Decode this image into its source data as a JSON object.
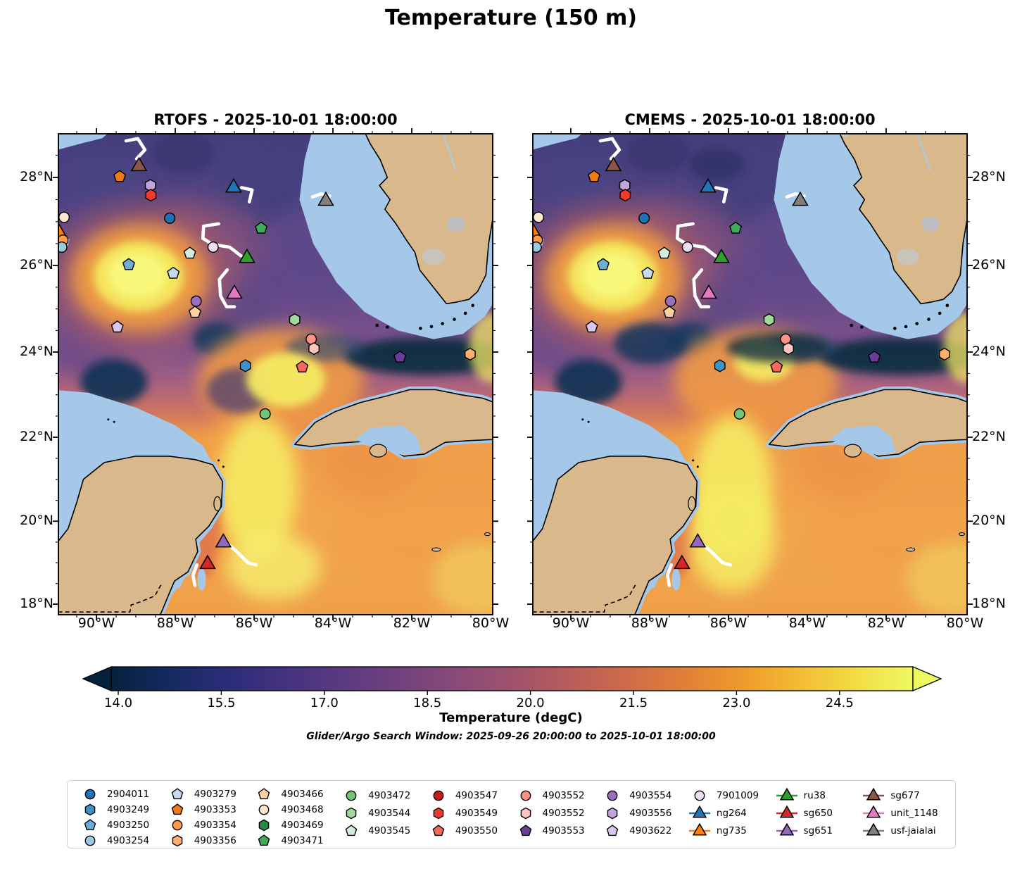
{
  "title": "Temperature (150 m)",
  "subtitle": "Glider/Argo Search Window: 2025-09-26 20:00:00 to 2025-10-01 18:00:00",
  "chart_data": {
    "type": "map-contour",
    "panels": [
      {
        "id": "rtofs",
        "title": "RTOFS - 2025-10-01 18:00:00"
      },
      {
        "id": "cmems",
        "title": "CMEMS - 2025-10-01 18:00:00"
      }
    ],
    "axes": {
      "lon_range": [
        -90.96,
        -79.95
      ],
      "lat_range": [
        17.74,
        28.98
      ],
      "x_ticks": [
        {
          "lon": -90,
          "label": "90°W"
        },
        {
          "lon": -88,
          "label": "88°W"
        },
        {
          "lon": -86,
          "label": "86°W"
        },
        {
          "lon": -84,
          "label": "84°W"
        },
        {
          "lon": -82,
          "label": "82°W"
        },
        {
          "lon": -80,
          "label": "80°W"
        }
      ],
      "y_ticks": [
        {
          "lat": 28,
          "label": "28°N"
        },
        {
          "lat": 26,
          "label": "26°N"
        },
        {
          "lat": 24,
          "label": "24°N"
        },
        {
          "lat": 22,
          "label": "22°N"
        },
        {
          "lat": 20,
          "label": "20°N"
        },
        {
          "lat": 18,
          "label": "18°N"
        }
      ],
      "minor_tick_step": 0.5
    },
    "colorbar": {
      "label": "Temperature (degC)",
      "colormap": "thermal",
      "vmin": 13.9,
      "vmax": 25.55,
      "extend": "both",
      "ticks": [
        {
          "value": 14.0,
          "label": "14.0"
        },
        {
          "value": 15.5,
          "label": "15.5"
        },
        {
          "value": 17.0,
          "label": "17.0"
        },
        {
          "value": 18.5,
          "label": "18.5"
        },
        {
          "value": 20.0,
          "label": "20.0"
        },
        {
          "value": 21.5,
          "label": "21.5"
        },
        {
          "value": 23.0,
          "label": "23.0"
        },
        {
          "value": 24.5,
          "label": "24.5"
        }
      ],
      "gradient_stops": [
        "#05223c",
        "#152a5f",
        "#2b2d78",
        "#44327f",
        "#5a3a80",
        "#70417e",
        "#884a77",
        "#9f526c",
        "#b75d5c",
        "#cf6b4a",
        "#e07f37",
        "#ee9a2c",
        "#f3bb32",
        "#f2dc45",
        "#eef962"
      ]
    },
    "markers": [
      {
        "label": "4903468",
        "shape": "circle",
        "color": "#fde7cd",
        "lon": -90.82,
        "lat": 27.1
      },
      {
        "label": "ng735",
        "shape": "triangle",
        "color": "#ff7f0e",
        "lon": -90.95,
        "lat": 26.78
      },
      {
        "label": "4903354",
        "shape": "circle",
        "color": "#fd9a49",
        "lon": -90.85,
        "lat": 26.58
      },
      {
        "label": "4903254",
        "shape": "circle",
        "color": "#9ecae1",
        "lon": -90.88,
        "lat": 26.42
      },
      {
        "label": "sg677",
        "shape": "triangle",
        "color": "#8c564b",
        "lon": -88.92,
        "lat": 28.28
      },
      {
        "label": "4903353",
        "shape": "pentagon",
        "color": "#f07b16",
        "lon": -89.41,
        "lat": 28.02
      },
      {
        "label": "4903556",
        "shape": "hexagon",
        "color": "#c3a2dd",
        "lon": -88.63,
        "lat": 27.82
      },
      {
        "label": "4903549",
        "shape": "hexagon",
        "color": "#ef3b2c",
        "lon": -88.62,
        "lat": 27.6
      },
      {
        "label": "ng264",
        "shape": "triangle",
        "color": "#1f77b4",
        "lon": -86.52,
        "lat": 27.8
      },
      {
        "label": "usf-jaialai",
        "shape": "triangle",
        "color": "#7f7f7f",
        "lon": -84.18,
        "lat": 27.5
      },
      {
        "label": "2904011",
        "shape": "circle",
        "color": "#2171b5",
        "lon": -88.14,
        "lat": 27.08
      },
      {
        "label": "4903471",
        "shape": "pentagon",
        "color": "#41ab5d",
        "lon": -85.82,
        "lat": 26.85
      },
      {
        "label": "7901009",
        "shape": "circle",
        "color": "#ecdff5",
        "lon": -87.04,
        "lat": 26.42
      },
      {
        "label": "4903545",
        "shape": "pentagon",
        "color": "#d2edda",
        "lon": -87.63,
        "lat": 26.28
      },
      {
        "label": "ru38",
        "shape": "triangle",
        "color": "#2ca02c",
        "lon": -86.18,
        "lat": 26.2
      },
      {
        "label": "4903250",
        "shape": "pentagon",
        "color": "#6baed6",
        "lon": -89.18,
        "lat": 26.02
      },
      {
        "label": "4903279",
        "shape": "pentagon",
        "color": "#c6dbef",
        "lon": -88.05,
        "lat": 25.82
      },
      {
        "label": "unit_1148",
        "shape": "triangle",
        "color": "#e377c2",
        "lon": -86.5,
        "lat": 25.38
      },
      {
        "label": "4903554",
        "shape": "circle",
        "color": "#9a6fc0",
        "lon": -87.47,
        "lat": 25.18
      },
      {
        "label": "4903466",
        "shape": "pentagon",
        "color": "#fdd0a2",
        "lon": -87.5,
        "lat": 24.92
      },
      {
        "label": "4903622",
        "shape": "pentagon",
        "color": "#dcc5ec",
        "lon": -89.47,
        "lat": 24.58
      },
      {
        "label": "4903544",
        "shape": "hexagon",
        "color": "#a1d99b",
        "lon": -84.97,
        "lat": 24.75
      },
      {
        "label": "4903552",
        "shape": "circle",
        "color": "#fc9285",
        "lon": -84.55,
        "lat": 24.3
      },
      {
        "label": "4903552",
        "shape": "hexagon",
        "color": "#fcc5c0",
        "lon": -84.48,
        "lat": 24.08
      },
      {
        "label": "4903550",
        "shape": "pentagon",
        "color": "#f4695c",
        "lon": -84.78,
        "lat": 23.65
      },
      {
        "label": "4903553",
        "shape": "pentagon",
        "color": "#6a3d9a",
        "lon": -82.3,
        "lat": 23.88
      },
      {
        "label": "4903356",
        "shape": "hexagon",
        "color": "#fdae6b",
        "lon": -80.52,
        "lat": 23.95
      },
      {
        "label": "4903249",
        "shape": "hexagon",
        "color": "#4292c6",
        "lon": -86.22,
        "lat": 23.68
      },
      {
        "label": "4903472",
        "shape": "circle",
        "color": "#74c476",
        "lon": -85.72,
        "lat": 22.55
      },
      {
        "label": "sg651",
        "shape": "triangle",
        "color": "#9467bd",
        "lon": -86.78,
        "lat": 19.52
      },
      {
        "label": "sg650",
        "shape": "triangle",
        "color": "#d62728",
        "lon": -87.18,
        "lat": 19.0
      }
    ],
    "glider_tracks": [
      {
        "points": [
          [
            -89.25,
            28.82
          ],
          [
            -88.95,
            28.87
          ],
          [
            -88.77,
            28.62
          ],
          [
            -88.98,
            28.42
          ]
        ]
      },
      {
        "points": [
          [
            -86.32,
            27.77
          ],
          [
            -86.05,
            27.72
          ],
          [
            -86.12,
            27.45
          ]
        ]
      },
      {
        "points": [
          [
            -84.52,
            27.56
          ],
          [
            -84.3,
            27.63
          ],
          [
            -84.08,
            27.58
          ]
        ]
      },
      {
        "points": [
          [
            -86.9,
            26.95
          ],
          [
            -87.28,
            26.9
          ],
          [
            -87.3,
            26.62
          ],
          [
            -87.05,
            26.48
          ],
          [
            -86.62,
            26.42
          ],
          [
            -86.33,
            26.22
          ]
        ]
      },
      {
        "points": [
          [
            -86.68,
            25.9
          ],
          [
            -86.88,
            25.68
          ],
          [
            -86.85,
            25.3
          ],
          [
            -86.7,
            25.05
          ],
          [
            -86.5,
            25.05
          ]
        ]
      },
      {
        "points": [
          [
            -86.7,
            19.48
          ],
          [
            -86.45,
            19.28
          ],
          [
            -86.15,
            19.0
          ],
          [
            -85.95,
            18.95
          ]
        ]
      },
      {
        "points": [
          [
            -87.45,
            18.95
          ],
          [
            -87.55,
            18.7
          ],
          [
            -87.5,
            18.45
          ]
        ]
      }
    ]
  },
  "legend": {
    "columns": [
      [
        {
          "label": "2904011",
          "shape": "circle",
          "color": "#2171b5"
        },
        {
          "label": "4903249",
          "shape": "hexagon",
          "color": "#4292c6"
        },
        {
          "label": "4903250",
          "shape": "pentagon",
          "color": "#6baed6"
        },
        {
          "label": "4903254",
          "shape": "circle",
          "color": "#9ecae1"
        }
      ],
      [
        {
          "label": "4903279",
          "shape": "pentagon",
          "color": "#c6dbef"
        },
        {
          "label": "4903353",
          "shape": "pentagon",
          "color": "#f07b16"
        },
        {
          "label": "4903354",
          "shape": "circle",
          "color": "#fd9a49"
        },
        {
          "label": "4903356",
          "shape": "hexagon",
          "color": "#fdae6b"
        }
      ],
      [
        {
          "label": "4903466",
          "shape": "pentagon",
          "color": "#fdd0a2"
        },
        {
          "label": "4903468",
          "shape": "circle",
          "color": "#fde7cd"
        },
        {
          "label": "4903469",
          "shape": "hexagon",
          "color": "#238b45"
        },
        {
          "label": "4903471",
          "shape": "pentagon",
          "color": "#41ab5d"
        }
      ],
      [
        {
          "label": "4903472",
          "shape": "circle",
          "color": "#74c476"
        },
        {
          "label": "4903544",
          "shape": "hexagon",
          "color": "#a1d99b"
        },
        {
          "label": "4903545",
          "shape": "pentagon",
          "color": "#d2edda"
        }
      ],
      [
        {
          "label": "4903547",
          "shape": "circle",
          "color": "#cb181d"
        },
        {
          "label": "4903549",
          "shape": "hexagon",
          "color": "#ef3b2c"
        },
        {
          "label": "4903550",
          "shape": "pentagon",
          "color": "#f4695c"
        }
      ],
      [
        {
          "label": "4903552",
          "shape": "circle",
          "color": "#fc9285"
        },
        {
          "label": "4903552",
          "shape": "hexagon",
          "color": "#fcc5c0"
        },
        {
          "label": "4903553",
          "shape": "pentagon",
          "color": "#6a3d9a"
        }
      ],
      [
        {
          "label": "4903554",
          "shape": "circle",
          "color": "#9a6fc0"
        },
        {
          "label": "4903556",
          "shape": "hexagon",
          "color": "#c3a2dd"
        },
        {
          "label": "4903622",
          "shape": "pentagon",
          "color": "#dcc5ec"
        }
      ],
      [
        {
          "label": "7901009",
          "shape": "circle",
          "color": "#ecdff5"
        },
        {
          "label": "ng264",
          "shape": "glider",
          "color": "#1f77b4"
        },
        {
          "label": "ng735",
          "shape": "glider",
          "color": "#ff7f0e"
        }
      ],
      [
        {
          "label": "ru38",
          "shape": "glider",
          "color": "#2ca02c"
        },
        {
          "label": "sg650",
          "shape": "glider",
          "color": "#d62728"
        },
        {
          "label": "sg651",
          "shape": "glider",
          "color": "#9467bd"
        }
      ],
      [
        {
          "label": "sg677",
          "shape": "glider",
          "color": "#8c564b"
        },
        {
          "label": "unit_1148",
          "shape": "glider",
          "color": "#e377c2"
        },
        {
          "label": "usf-jaialai",
          "shape": "glider",
          "color": "#7f7f7f"
        }
      ]
    ]
  },
  "map_colors": {
    "land": "#d9b98c",
    "shallow_water": "#a5c8e9",
    "coastline": "#000000",
    "track": "#ffffff",
    "lake_gray": "#bdbdbd"
  }
}
